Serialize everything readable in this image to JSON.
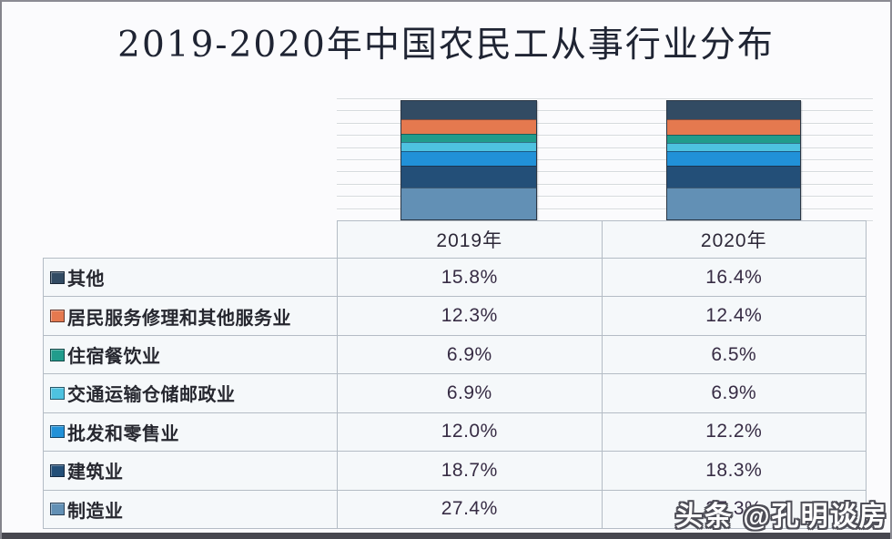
{
  "title": "2019-2020年中国农民工从事行业分布",
  "watermark": "头条 @孔明谈房",
  "table": {
    "year_headers": [
      "2019年",
      "2020年"
    ]
  },
  "chart_data": {
    "type": "bar",
    "stacked": true,
    "percent_stacked": true,
    "title": "2019-2020年中国农民工从事行业分布",
    "categories": [
      "2019年",
      "2020年"
    ],
    "series": [
      {
        "name": "其他",
        "color": "#324B63",
        "values": [
          15.8,
          16.4
        ]
      },
      {
        "name": "居民服务修理和其他服务业",
        "color": "#E5794F",
        "values": [
          12.3,
          12.4
        ]
      },
      {
        "name": "住宿餐饮业",
        "color": "#219C8C",
        "values": [
          6.9,
          6.5
        ]
      },
      {
        "name": "交通运输仓储邮政业",
        "color": "#4EC2E0",
        "values": [
          6.9,
          6.9
        ]
      },
      {
        "name": "批发和零售业",
        "color": "#2191D8",
        "values": [
          12.0,
          12.2
        ]
      },
      {
        "name": "建筑业",
        "color": "#234F78",
        "values": [
          18.7,
          18.3
        ]
      },
      {
        "name": "制造业",
        "color": "#6290B5",
        "values": [
          27.4,
          27.3
        ]
      }
    ],
    "units": "%",
    "ylim": [
      0,
      100
    ],
    "grid": true,
    "grid_interval_pct": 10,
    "legend_position": "table-left-column"
  }
}
